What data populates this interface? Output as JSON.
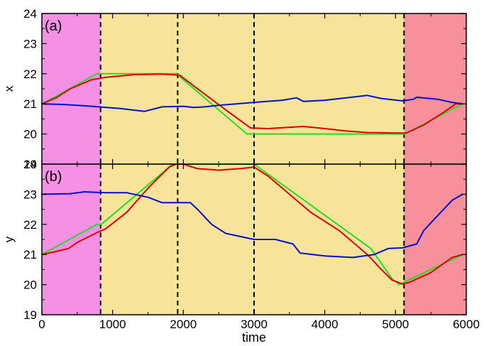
{
  "colors": {
    "region_magenta": "#f590e4",
    "region_yellow": "#f7e39a",
    "region_red": "#f7909a",
    "green": "#22dd22",
    "red": "#e00000",
    "blue": "#0010cc"
  },
  "chart_data": [
    {
      "panel_label": "(a)",
      "type": "line",
      "ylabel": "x",
      "xlabel": "",
      "xlim": [
        0,
        6000
      ],
      "ylim": [
        19,
        24
      ],
      "xticks": [
        "0",
        "1000",
        "2000",
        "3000",
        "4000",
        "5000",
        "6000"
      ],
      "yticks": [
        "19",
        "20",
        "21",
        "22",
        "23",
        "24"
      ],
      "show_x_tick_labels": false,
      "regions": [
        {
          "x0": 0,
          "x1": 830,
          "color": "#f590e4"
        },
        {
          "x0": 830,
          "x1": 5120,
          "color": "#f7e39a"
        },
        {
          "x0": 5120,
          "x1": 6000,
          "color": "#f7909a"
        }
      ],
      "vlines": [
        830,
        1920,
        3000,
        5120
      ],
      "series": [
        {
          "color": "#22dd22",
          "x": [
            0,
            780,
            1900,
            2900,
            5130,
            5950
          ],
          "y": [
            21.0,
            22.0,
            22.0,
            20.0,
            20.0,
            21.0
          ]
        },
        {
          "color": "#e00000",
          "x": [
            0,
            200,
            400,
            700,
            900,
            1300,
            1700,
            1950,
            2200,
            2600,
            2950,
            3200,
            3700,
            4000,
            4300,
            4600,
            5000,
            5150,
            5400,
            5700,
            5850,
            5950
          ],
          "y": [
            21.0,
            21.2,
            21.5,
            21.8,
            21.88,
            21.97,
            21.99,
            21.95,
            21.5,
            20.8,
            20.2,
            20.18,
            20.25,
            20.18,
            20.1,
            20.05,
            20.03,
            20.03,
            20.3,
            20.75,
            21.0,
            21.0
          ]
        },
        {
          "color": "#0010cc",
          "x": [
            0,
            300,
            700,
            1100,
            1450,
            1700,
            2000,
            2150,
            2300,
            2500,
            3000,
            3400,
            3600,
            3700,
            4000,
            4300,
            4600,
            4800,
            5100,
            5250,
            5300,
            5600,
            5800,
            5950
          ],
          "y": [
            21.0,
            20.98,
            20.92,
            20.85,
            20.75,
            20.9,
            20.92,
            20.88,
            20.9,
            20.95,
            21.05,
            21.12,
            21.2,
            21.08,
            21.12,
            21.2,
            21.28,
            21.18,
            21.1,
            21.15,
            21.22,
            21.15,
            21.05,
            21.0
          ]
        }
      ]
    },
    {
      "panel_label": "(b)",
      "type": "line",
      "ylabel": "y",
      "xlabel": "time",
      "xlim": [
        0,
        6000
      ],
      "ylim": [
        19,
        24
      ],
      "xticks": [
        "0",
        "1000",
        "2000",
        "3000",
        "4000",
        "5000",
        "6000"
      ],
      "yticks": [
        "19",
        "20",
        "21",
        "22",
        "23",
        "24"
      ],
      "show_x_tick_labels": true,
      "regions": [
        {
          "x0": 0,
          "x1": 830,
          "color": "#f590e4"
        },
        {
          "x0": 830,
          "x1": 5120,
          "color": "#f7e39a"
        },
        {
          "x0": 5120,
          "x1": 6000,
          "color": "#f7909a"
        }
      ],
      "vlines": [
        830,
        1920,
        3000,
        5120
      ],
      "series": [
        {
          "color": "#22dd22",
          "x": [
            0,
            780,
            840,
            1850,
            3000,
            4650,
            4950,
            5050,
            5950
          ],
          "y": [
            21.0,
            22.0,
            22.0,
            24.0,
            24.0,
            21.2,
            20.2,
            20.0,
            21.0
          ]
        },
        {
          "color": "#e00000",
          "x": [
            0,
            200,
            380,
            500,
            800,
            900,
            1200,
            1500,
            1800,
            1900,
            2000,
            2200,
            2500,
            2800,
            3000,
            3200,
            3500,
            3800,
            4200,
            4600,
            4800,
            4950,
            5100,
            5200,
            5500,
            5800,
            5950
          ],
          "y": [
            21.0,
            21.1,
            21.2,
            21.4,
            21.75,
            21.85,
            22.4,
            23.2,
            23.9,
            24.0,
            24.0,
            23.85,
            23.8,
            23.85,
            23.9,
            23.6,
            23.0,
            22.4,
            21.8,
            21.0,
            20.5,
            20.15,
            20.02,
            20.08,
            20.4,
            20.9,
            21.0
          ]
        },
        {
          "color": "#0010cc",
          "x": [
            0,
            400,
            600,
            900,
            1200,
            1500,
            1700,
            1900,
            2100,
            2200,
            2400,
            2600,
            3000,
            3300,
            3550,
            3650,
            4000,
            4400,
            4700,
            4900,
            5100,
            5300,
            5400,
            5600,
            5800,
            5950
          ],
          "y": [
            23.0,
            23.02,
            23.08,
            23.05,
            23.05,
            22.9,
            22.72,
            22.72,
            22.72,
            22.5,
            22.0,
            21.7,
            21.5,
            21.5,
            21.35,
            21.05,
            20.95,
            20.9,
            21.0,
            21.2,
            21.22,
            21.35,
            21.8,
            22.3,
            22.8,
            23.0
          ]
        }
      ]
    }
  ]
}
